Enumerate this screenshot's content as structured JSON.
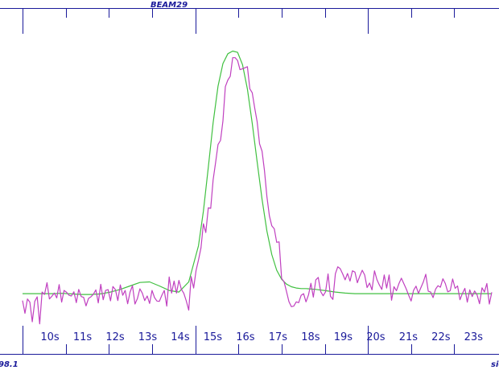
{
  "chart_data": {
    "type": "line",
    "title": "BEAM29",
    "corner_left": "98.1",
    "corner_right": "sic",
    "xlabel": "",
    "ylabel": "",
    "x_unit": "s",
    "xlim": [
      9.3,
      23.7
    ],
    "ylim": [
      -0.12,
      1.0
    ],
    "tick_labels": [
      "10s",
      "11s",
      "12s",
      "13s",
      "14s",
      "15s",
      "16s",
      "17s",
      "18s",
      "19s",
      "20s",
      "21s",
      "22s",
      "23s"
    ],
    "major_ticks": [
      9.3,
      14.6,
      19.9
    ],
    "grid": false,
    "colors": {
      "measured": "#c040c0",
      "fit": "#40c040",
      "axis": "#1a1a9a",
      "text": "#1a1a9a"
    },
    "series": [
      {
        "id": "measured",
        "x": [
          9.3,
          9.375,
          9.45,
          9.525,
          9.6,
          9.675,
          9.75,
          9.825,
          9.9,
          9.975,
          10.05,
          10.125,
          10.2,
          10.275,
          10.35,
          10.425,
          10.5,
          10.575,
          10.65,
          10.725,
          10.8,
          10.875,
          10.95,
          11.025,
          11.1,
          11.175,
          11.25,
          11.325,
          11.4,
          11.475,
          11.55,
          11.625,
          11.7,
          11.775,
          11.85,
          11.925,
          12.0,
          12.075,
          12.15,
          12.225,
          12.3,
          12.375,
          12.45,
          12.525,
          12.6,
          12.675,
          12.75,
          12.825,
          12.9,
          12.975,
          13.05,
          13.125,
          13.2,
          13.275,
          13.35,
          13.425,
          13.5,
          13.575,
          13.65,
          13.725,
          13.8,
          13.875,
          13.95,
          14.025,
          14.1,
          14.175,
          14.25,
          14.325,
          14.4,
          14.475,
          14.55,
          14.625,
          14.7,
          14.775,
          14.85,
          14.925,
          15.0,
          15.075,
          15.15,
          15.225,
          15.3,
          15.375,
          15.45,
          15.525,
          15.6,
          15.675,
          15.75,
          15.825,
          15.9,
          15.975,
          16.05,
          16.125,
          16.2,
          16.275,
          16.35,
          16.425,
          16.5,
          16.575,
          16.65,
          16.725,
          16.8,
          16.875,
          16.95,
          17.025,
          17.1,
          17.175,
          17.25,
          17.325,
          17.4,
          17.475,
          17.55,
          17.625,
          17.7,
          17.775,
          17.85,
          17.925,
          18.0,
          18.075,
          18.15,
          18.225,
          18.3,
          18.375,
          18.45,
          18.525,
          18.6,
          18.675,
          18.75,
          18.825,
          18.9,
          18.975,
          19.05,
          19.125,
          19.2,
          19.275,
          19.35,
          19.425,
          19.5,
          19.575,
          19.65,
          19.725,
          19.8,
          19.875,
          19.95,
          20.025,
          20.1,
          20.175,
          20.25,
          20.325,
          20.4,
          20.475,
          20.55,
          20.625,
          20.7,
          20.775,
          20.85,
          20.925,
          21.0,
          21.075,
          21.15,
          21.225,
          21.3,
          21.375,
          21.45,
          21.525,
          21.6,
          21.675,
          21.75,
          21.825,
          21.9,
          21.975,
          22.05,
          22.125,
          22.2,
          22.275,
          22.35,
          22.425,
          22.5,
          22.575,
          22.65,
          22.725,
          22.8,
          22.875,
          22.95,
          23.025,
          23.1,
          23.175,
          23.25,
          23.325,
          23.4,
          23.475,
          23.55,
          23.625,
          23.7
        ],
        "values": [
          -0.01,
          -0.058,
          -0.004,
          -0.016,
          -0.09,
          -0.013,
          0.004,
          -0.098,
          0.022,
          0.013,
          0.057,
          -0.004,
          0.006,
          0.018,
          0.0,
          0.05,
          -0.016,
          0.028,
          0.021,
          0.01,
          0.007,
          0.023,
          -0.018,
          0.032,
          0.005,
          0.002,
          -0.03,
          -0.002,
          0.004,
          0.014,
          0.03,
          -0.019,
          0.051,
          -0.007,
          0.028,
          0.031,
          -0.011,
          0.043,
          0.031,
          -0.01,
          0.049,
          0.01,
          0.028,
          -0.022,
          0.022,
          0.046,
          -0.023,
          -0.003,
          0.034,
          0.018,
          -0.01,
          0.007,
          -0.021,
          0.028,
          0.001,
          -0.012,
          -0.013,
          0.01,
          0.028,
          -0.031,
          0.079,
          0.018,
          0.063,
          0.018,
          0.066,
          0.032,
          0.017,
          -0.011,
          -0.046,
          0.08,
          0.037,
          0.103,
          0.142,
          0.188,
          0.279,
          0.246,
          0.339,
          0.337,
          0.444,
          0.51,
          0.577,
          0.593,
          0.666,
          0.795,
          0.82,
          0.834,
          0.904,
          0.904,
          0.893,
          0.859,
          0.862,
          0.866,
          0.87,
          0.787,
          0.772,
          0.714,
          0.663,
          0.58,
          0.552,
          0.479,
          0.382,
          0.309,
          0.271,
          0.26,
          0.209,
          0.211,
          0.073,
          0.061,
          0.025,
          -0.014,
          -0.033,
          -0.031,
          -0.015,
          -0.018,
          0.01,
          0.016,
          -0.015,
          0.011,
          0.055,
          0.003,
          0.068,
          0.077,
          0.024,
          0.008,
          0.023,
          0.09,
          0.006,
          -0.006,
          0.091,
          0.117,
          0.11,
          0.09,
          0.068,
          0.092,
          0.063,
          0.102,
          0.097,
          0.057,
          0.082,
          0.104,
          0.086,
          0.039,
          0.056,
          0.03,
          0.102,
          0.069,
          0.049,
          0.032,
          0.086,
          0.037,
          0.086,
          -0.009,
          0.042,
          0.027,
          0.053,
          0.074,
          0.054,
          0.034,
          0.01,
          -0.012,
          0.028,
          0.044,
          0.017,
          0.038,
          0.06,
          0.089,
          0.025,
          0.022,
          0.001,
          0.033,
          0.046,
          0.04,
          0.072,
          0.054,
          0.023,
          0.027,
          0.071,
          0.036,
          0.045,
          -0.007,
          0.017,
          0.036,
          -0.016,
          0.03,
          0.005,
          0.026,
          0.011,
          -0.022,
          0.038,
          0.022,
          0.054,
          -0.023,
          0.021
        ]
      },
      {
        "id": "fit",
        "x": [
          9.3,
          9.6,
          9.9,
          10.2,
          10.5,
          10.8,
          11.1,
          11.4,
          11.7,
          12.0,
          12.3,
          12.6,
          12.9,
          13.2,
          13.5,
          13.8,
          14.1,
          14.4,
          14.7,
          14.85,
          15.0,
          15.15,
          15.3,
          15.45,
          15.6,
          15.75,
          15.9,
          16.05,
          16.2,
          16.35,
          16.5,
          16.65,
          16.8,
          16.95,
          17.1,
          17.25,
          17.4,
          17.55,
          17.7,
          17.85,
          18.0,
          18.3,
          18.6,
          18.9,
          19.2,
          19.5,
          19.8,
          20.1,
          20.4,
          20.7,
          21.0,
          21.3,
          21.6,
          21.9,
          22.2,
          22.5,
          22.8,
          23.1,
          23.4,
          23.7
        ],
        "values": [
          0.016,
          0.016,
          0.016,
          0.016,
          0.017,
          0.015,
          0.013,
          0.013,
          0.015,
          0.022,
          0.032,
          0.045,
          0.058,
          0.06,
          0.045,
          0.028,
          0.022,
          0.06,
          0.196,
          0.326,
          0.491,
          0.659,
          0.797,
          0.882,
          0.919,
          0.929,
          0.924,
          0.878,
          0.786,
          0.657,
          0.512,
          0.371,
          0.252,
          0.163,
          0.104,
          0.07,
          0.052,
          0.042,
          0.037,
          0.035,
          0.035,
          0.032,
          0.027,
          0.022,
          0.018,
          0.016,
          0.016,
          0.016,
          0.016,
          0.016,
          0.016,
          0.016,
          0.016,
          0.016,
          0.016,
          0.016,
          0.016,
          0.016,
          0.016,
          0.016
        ]
      }
    ]
  }
}
